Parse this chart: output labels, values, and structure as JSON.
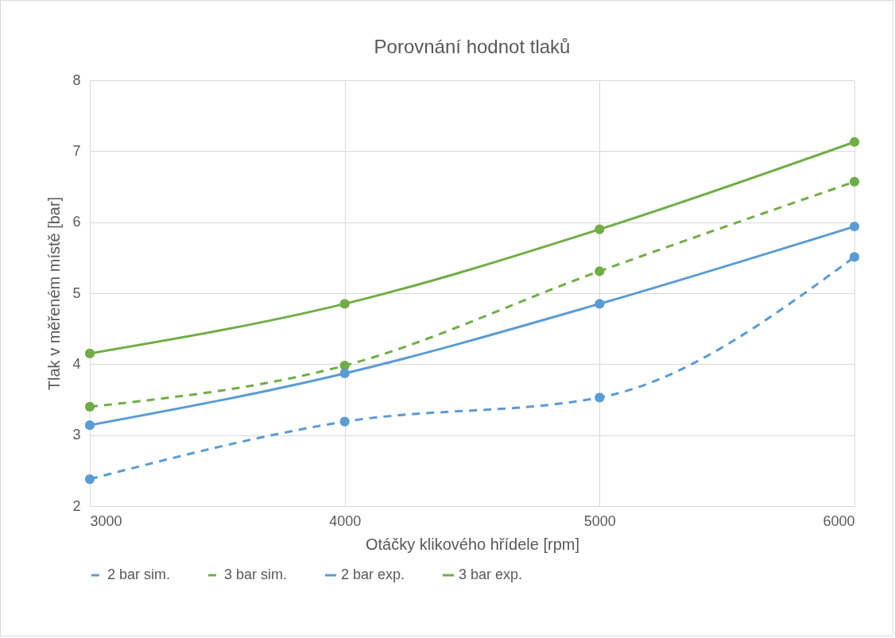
{
  "chart_data": {
    "type": "line",
    "title": "Porovnání hodnot tlaků",
    "xlabel": "Otáčky klikového hřídele [rpm]",
    "ylabel": "Tlak v měřeném místě [bar]",
    "x": [
      3000,
      4000,
      5000,
      6000
    ],
    "xlim": [
      3000,
      6000
    ],
    "xticks": [
      3000,
      4000,
      5000,
      6000
    ],
    "ylim": [
      2,
      8
    ],
    "yticks": [
      2,
      3,
      4,
      5,
      6,
      7,
      8
    ],
    "grid": true,
    "legend": "bottom",
    "marker": "circle",
    "series": [
      {
        "name": "2 bar sim.",
        "color": "#5b9bd5",
        "line_style": "dashed",
        "values": [
          2.38,
          3.19,
          3.53,
          5.51
        ]
      },
      {
        "name": "3 bar sim.",
        "color": "#70ad47",
        "line_style": "dashed",
        "values": [
          3.4,
          3.98,
          5.31,
          6.57
        ]
      },
      {
        "name": "2 bar exp.",
        "color": "#5b9bd5",
        "line_style": "solid",
        "values": [
          3.14,
          3.87,
          4.85,
          5.94
        ]
      },
      {
        "name": "3 bar exp.",
        "color": "#70ad47",
        "line_style": "solid",
        "values": [
          4.15,
          4.85,
          5.9,
          7.13
        ]
      }
    ]
  }
}
